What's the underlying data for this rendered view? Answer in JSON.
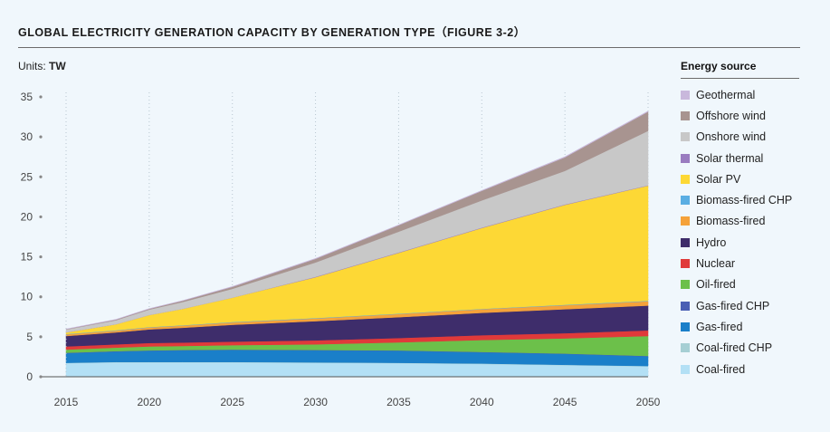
{
  "title": "GLOBAL ELECTRICITY GENERATION CAPACITY BY GENERATION TYPE（FIGURE 3-2）",
  "units_label": "Units: ",
  "units_value": "TW",
  "legend_title": "Energy source",
  "chart_data": {
    "type": "area",
    "stacked": true,
    "x": [
      2015,
      2018,
      2020,
      2022,
      2025,
      2030,
      2035,
      2040,
      2045,
      2050
    ],
    "ylim": [
      0,
      35
    ],
    "yticks": [
      0,
      5,
      10,
      15,
      20,
      25,
      30,
      35
    ],
    "xticks": [
      2015,
      2020,
      2025,
      2030,
      2035,
      2040,
      2045,
      2050
    ],
    "grid": true,
    "legend_position": "right",
    "series": [
      {
        "name": "Coal-fired",
        "color": "#b3e0f5",
        "values": [
          1.7,
          1.8,
          1.8,
          1.8,
          1.8,
          1.75,
          1.7,
          1.6,
          1.45,
          1.3
        ]
      },
      {
        "name": "Coal-fired CHP",
        "color": "#a6cfd4",
        "values": [
          0.05,
          0.05,
          0.05,
          0.05,
          0.05,
          0.05,
          0.05,
          0.05,
          0.05,
          0.05
        ]
      },
      {
        "name": "Gas-fired",
        "color": "#1a7fc9",
        "values": [
          1.2,
          1.3,
          1.4,
          1.45,
          1.5,
          1.5,
          1.5,
          1.4,
          1.35,
          1.2
        ]
      },
      {
        "name": "Gas-fired CHP",
        "color": "#4a5fb4",
        "values": [
          0.05,
          0.05,
          0.05,
          0.05,
          0.05,
          0.05,
          0.05,
          0.05,
          0.05,
          0.05
        ]
      },
      {
        "name": "Oil-fired",
        "color": "#6cc04a",
        "values": [
          0.4,
          0.45,
          0.5,
          0.5,
          0.55,
          0.7,
          1.0,
          1.5,
          1.9,
          2.5
        ]
      },
      {
        "name": "Nuclear",
        "color": "#e03a3a",
        "values": [
          0.4,
          0.4,
          0.42,
          0.43,
          0.45,
          0.5,
          0.55,
          0.6,
          0.65,
          0.7
        ]
      },
      {
        "name": "Hydro",
        "color": "#3e2d6b",
        "values": [
          1.3,
          1.5,
          1.7,
          1.85,
          2.1,
          2.4,
          2.6,
          2.8,
          3.0,
          3.1
        ]
      },
      {
        "name": "Biomass-fired",
        "color": "#f5a23a",
        "values": [
          0.2,
          0.22,
          0.25,
          0.27,
          0.3,
          0.35,
          0.4,
          0.45,
          0.5,
          0.55
        ]
      },
      {
        "name": "Biomass-fired CHP",
        "color": "#5aaee3",
        "values": [
          0.05,
          0.05,
          0.05,
          0.05,
          0.05,
          0.05,
          0.05,
          0.05,
          0.05,
          0.05
        ]
      },
      {
        "name": "Solar PV",
        "color": "#fdd835",
        "values": [
          0.2,
          0.75,
          1.5,
          2.05,
          3.05,
          5.1,
          7.6,
          10.1,
          12.5,
          14.4
        ]
      },
      {
        "name": "Solar thermal",
        "color": "#9a7cc0",
        "values": [
          0.0,
          0.0,
          0.0,
          0.0,
          0.0,
          0.05,
          0.05,
          0.05,
          0.05,
          0.05
        ]
      },
      {
        "name": "Onshore wind",
        "color": "#c8c8c8",
        "values": [
          0.35,
          0.5,
          0.68,
          0.85,
          1.1,
          1.8,
          2.6,
          3.4,
          4.2,
          6.8
        ]
      },
      {
        "name": "Offshore wind",
        "color": "#a89490",
        "values": [
          0.05,
          0.08,
          0.1,
          0.15,
          0.25,
          0.45,
          0.8,
          1.2,
          1.7,
          2.4
        ]
      },
      {
        "name": "Geothermal",
        "color": "#c9b8dc",
        "values": [
          0.03,
          0.03,
          0.03,
          0.03,
          0.04,
          0.05,
          0.05,
          0.06,
          0.07,
          0.08
        ]
      }
    ]
  }
}
